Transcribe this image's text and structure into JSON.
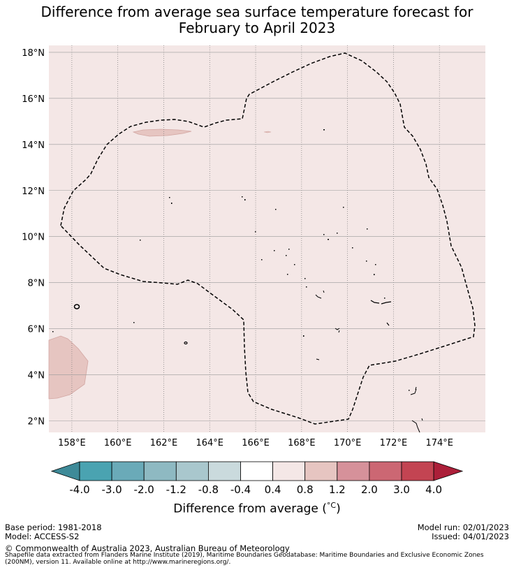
{
  "title_line1": "Difference from average sea surface temperature forecast for",
  "title_line2": "February to April 2023",
  "axis": {
    "lon_ticks": [
      "158°E",
      "160°E",
      "162°E",
      "164°E",
      "166°E",
      "168°E",
      "170°E",
      "172°E",
      "174°E"
    ],
    "lat_ticks": [
      "18°N",
      "16°N",
      "14°N",
      "12°N",
      "10°N",
      "8°N",
      "6°N",
      "4°N",
      "2°N"
    ],
    "lon_range": [
      157,
      176
    ],
    "lat_range": [
      1.5,
      18.3
    ],
    "grid": true
  },
  "colorbar": {
    "title": "Difference from average (°C)",
    "title_prefix": "Difference from average (",
    "title_unit": "°C",
    "title_suffix": ")",
    "ticks": [
      "-4.0",
      "-3.0",
      "-2.0",
      "-1.2",
      "-0.8",
      "-0.4",
      "0.4",
      "0.8",
      "1.2",
      "2.0",
      "3.0",
      "4.0"
    ],
    "colors": [
      "#3e8a98",
      "#4aa3b1",
      "#6aaab8",
      "#8eb9c2",
      "#a9c7cd",
      "#cadadd",
      "#ffffff",
      "#f4e7e6",
      "#e6c5c1",
      "#d6919a",
      "#cc6773",
      "#c34452",
      "#ac1f39"
    ]
  },
  "map": {
    "background_category": "0.4 to 0.8",
    "background_color": "#f4e7e6",
    "warm_patch_color": "#e6c5c1"
  },
  "footer": {
    "base_period": "Base period: 1981-2018",
    "model": "Model: ACCESS-S2",
    "model_run": "Model run: 02/01/2023",
    "issued": "Issued: 04/01/2023",
    "copyright": "© Commonwealth of Australia 2023, Australian Bureau of Meteorology",
    "source": "Shapefile data extracted from Flanders Marine Institute (2019), Maritime Boundaries Geodatabase: Maritime Boundaries and Exclusive Economic Zones (200NM), version 11. Available online at http://www.marineregions.org/."
  }
}
